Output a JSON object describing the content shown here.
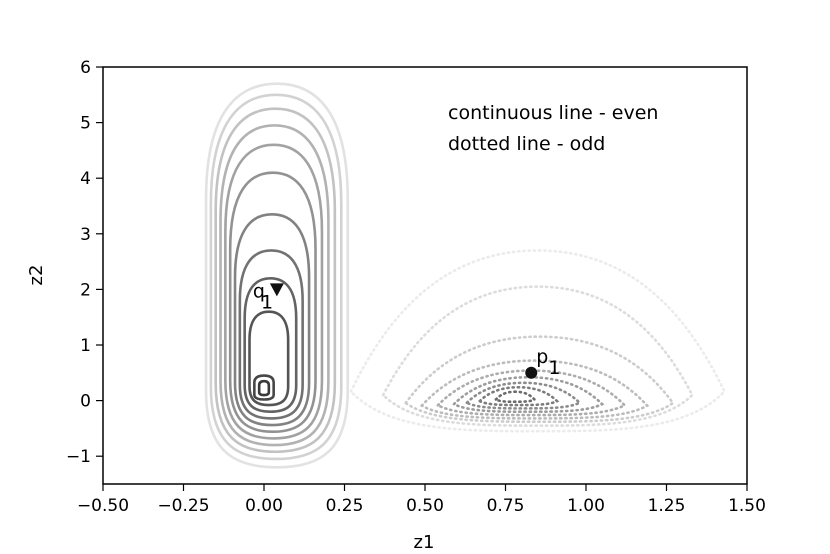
{
  "chart_data": {
    "type": "contour",
    "xlabel": "z1",
    "ylabel": "z2",
    "xlim": [
      -0.5,
      1.5
    ],
    "ylim": [
      -1.5,
      6
    ],
    "xticks": [
      -0.5,
      -0.25,
      0.0,
      0.25,
      0.5,
      0.75,
      1.0,
      1.25,
      1.5
    ],
    "xtick_labels": [
      "−0.50",
      "−0.25",
      "0.00",
      "0.25",
      "0.50",
      "0.75",
      "1.00",
      "1.25",
      "1.50"
    ],
    "yticks": [
      -1,
      0,
      1,
      2,
      3,
      4,
      5,
      6
    ],
    "ytick_labels": [
      "−1",
      "0",
      "1",
      "2",
      "3",
      "4",
      "5",
      "6"
    ],
    "annotations": [
      "continuous line - even",
      "dotted line - odd"
    ],
    "series": [
      {
        "linestyle": "solid",
        "center": [
          0.0,
          0.25
        ],
        "contour_levels": [
          {
            "xmin": -0.18,
            "xmax": 0.26,
            "ymin": -1.2,
            "ymax": 5.7,
            "color": "#e2e2e2"
          },
          {
            "xmin": -0.165,
            "xmax": 0.24,
            "ymin": -1.05,
            "ymax": 5.5,
            "color": "#d2d2d2"
          },
          {
            "xmin": -0.15,
            "xmax": 0.22,
            "ymin": -0.92,
            "ymax": 5.25,
            "color": "#c2c2c2"
          },
          {
            "xmin": -0.135,
            "xmax": 0.2,
            "ymin": -0.8,
            "ymax": 4.95,
            "color": "#b2b2b2"
          },
          {
            "xmin": -0.12,
            "xmax": 0.18,
            "ymin": -0.68,
            "ymax": 4.6,
            "color": "#a2a2a2"
          },
          {
            "xmin": -0.105,
            "xmax": 0.16,
            "ymin": -0.56,
            "ymax": 4.1,
            "color": "#929292"
          },
          {
            "xmin": -0.09,
            "xmax": 0.14,
            "ymin": -0.44,
            "ymax": 3.35,
            "color": "#828282"
          },
          {
            "xmin": -0.075,
            "xmax": 0.12,
            "ymin": -0.32,
            "ymax": 2.7,
            "color": "#727272"
          },
          {
            "xmin": -0.06,
            "xmax": 0.1,
            "ymin": -0.2,
            "ymax": 2.2,
            "color": "#636363"
          },
          {
            "xmin": -0.045,
            "xmax": 0.075,
            "ymin": -0.08,
            "ymax": 1.6,
            "color": "#555555"
          },
          {
            "xmin": -0.03,
            "xmax": 0.03,
            "ymin": 0.02,
            "ymax": 0.45,
            "color": "#474747"
          },
          {
            "xmin": -0.015,
            "xmax": 0.015,
            "ymin": 0.1,
            "ymax": 0.35,
            "color": "#3a3a3a"
          }
        ]
      },
      {
        "linestyle": "dotted",
        "center": [
          0.77,
          0.08
        ],
        "contour_levels": [
          {
            "xmin": 0.27,
            "xmax": 1.43,
            "ymin": -0.55,
            "ymax": 2.7,
            "color": "#ebebeb"
          },
          {
            "xmin": 0.37,
            "xmax": 1.33,
            "ymin": -0.45,
            "ymax": 2.05,
            "color": "#dcdcdc"
          },
          {
            "xmin": 0.44,
            "xmax": 1.27,
            "ymin": -0.38,
            "ymax": 1.15,
            "color": "#cccccc"
          },
          {
            "xmin": 0.49,
            "xmax": 1.19,
            "ymin": -0.32,
            "ymax": 0.72,
            "color": "#bcbcbc"
          },
          {
            "xmin": 0.54,
            "xmax": 1.12,
            "ymin": -0.26,
            "ymax": 0.54,
            "color": "#acacac"
          },
          {
            "xmin": 0.59,
            "xmax": 1.05,
            "ymin": -0.2,
            "ymax": 0.42,
            "color": "#9c9c9c"
          },
          {
            "xmin": 0.63,
            "xmax": 0.98,
            "ymin": -0.14,
            "ymax": 0.32,
            "color": "#8c8c8c"
          },
          {
            "xmin": 0.67,
            "xmax": 0.91,
            "ymin": -0.08,
            "ymax": 0.24,
            "color": "#7c7c7c"
          },
          {
            "xmin": 0.72,
            "xmax": 0.84,
            "ymin": -0.02,
            "ymax": 0.16,
            "color": "#6c6c6c"
          }
        ]
      }
    ],
    "points": [
      {
        "label_main": "q",
        "label_sub": "1",
        "x": 0.04,
        "y": 2.0,
        "marker": "triangle-down"
      },
      {
        "label_main": "p",
        "label_sub": "1",
        "x": 0.83,
        "y": 0.5,
        "marker": "circle"
      }
    ]
  }
}
